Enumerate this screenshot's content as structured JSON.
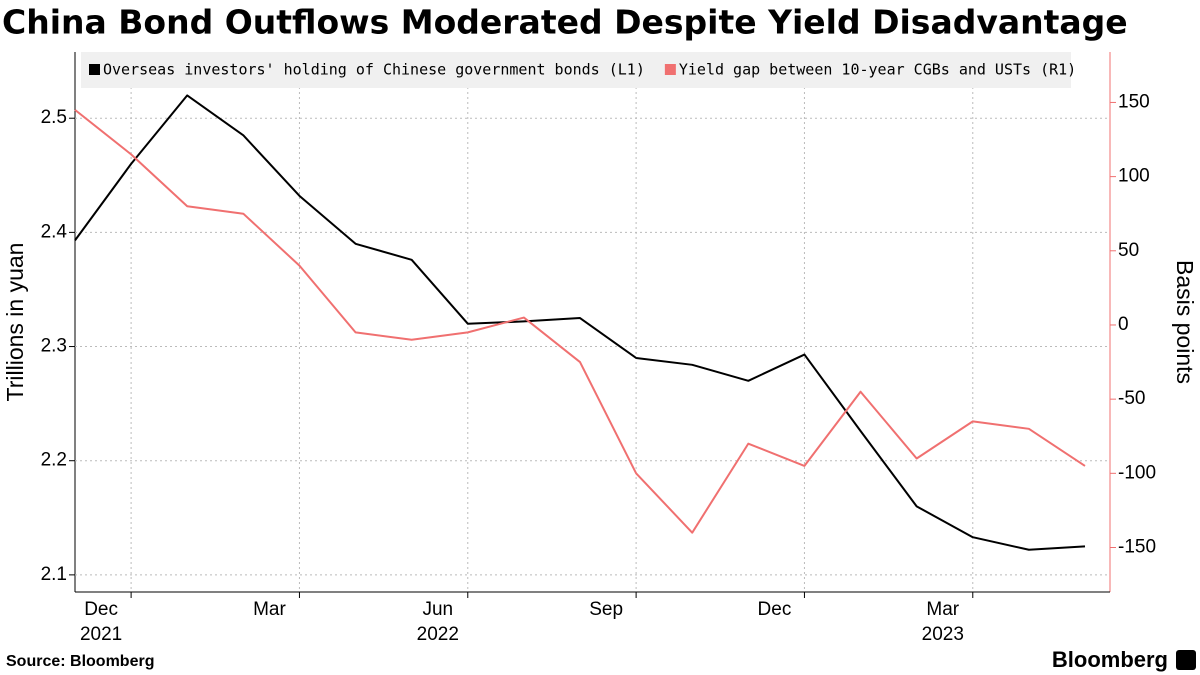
{
  "chart_data": {
    "type": "line",
    "title": "China Bond Outflows Moderated Despite Yield Disadvantage",
    "source": "Source: Bloomberg",
    "brand": "Bloomberg",
    "ylabel": "Trillions in yuan",
    "y2label": "Basis points",
    "x": [
      "2021-11",
      "2021-12",
      "2022-01",
      "2022-02",
      "2022-03",
      "2022-04",
      "2022-05",
      "2022-06",
      "2022-07",
      "2022-08",
      "2022-09",
      "2022-10",
      "2022-11",
      "2022-12",
      "2023-01",
      "2023-02",
      "2023-03",
      "2023-04",
      "2023-05"
    ],
    "series": [
      {
        "name": "Overseas investors' holding of Chinese government bonds (L1)",
        "color": "#000000",
        "axis": "y",
        "values": [
          2.393,
          2.46,
          2.52,
          2.485,
          2.432,
          2.39,
          2.376,
          2.32,
          2.322,
          2.325,
          2.29,
          2.284,
          2.27,
          2.293,
          2.226,
          2.16,
          2.133,
          2.122,
          2.125
        ]
      },
      {
        "name": "Yield gap between 10-year CGBs and USTs (R1)",
        "color": "#f07070",
        "axis": "y2",
        "values": [
          145,
          115,
          80,
          75,
          40,
          -5,
          -10,
          -5,
          5,
          -25,
          -100,
          -140,
          -80,
          -95,
          -45,
          -90,
          -65,
          -70,
          -95
        ]
      }
    ],
    "xlim": [
      "2021-11",
      "2023-05"
    ],
    "xticks": [
      {
        "value": "2021-12",
        "label": "Dec"
      },
      {
        "value": "2022-03",
        "label": "Mar"
      },
      {
        "value": "2022-06",
        "label": "Jun"
      },
      {
        "value": "2022-09",
        "label": "Sep"
      },
      {
        "value": "2022-12",
        "label": "Dec"
      },
      {
        "value": "2023-03",
        "label": "Mar"
      }
    ],
    "xtick_years": [
      {
        "value": "2021-12",
        "label": "2021"
      },
      {
        "value": "2022-06",
        "label": "2022"
      },
      {
        "value": "2023-03",
        "label": "2023"
      }
    ],
    "ylim": [
      2.085,
      2.558
    ],
    "yticks": [
      2.1,
      2.2,
      2.3,
      2.4,
      2.5
    ],
    "y2lim": [
      -180,
      184
    ],
    "y2ticks": [
      -150,
      -100,
      -50,
      0,
      50,
      100,
      150
    ],
    "grid": true,
    "legend": "top-left"
  }
}
